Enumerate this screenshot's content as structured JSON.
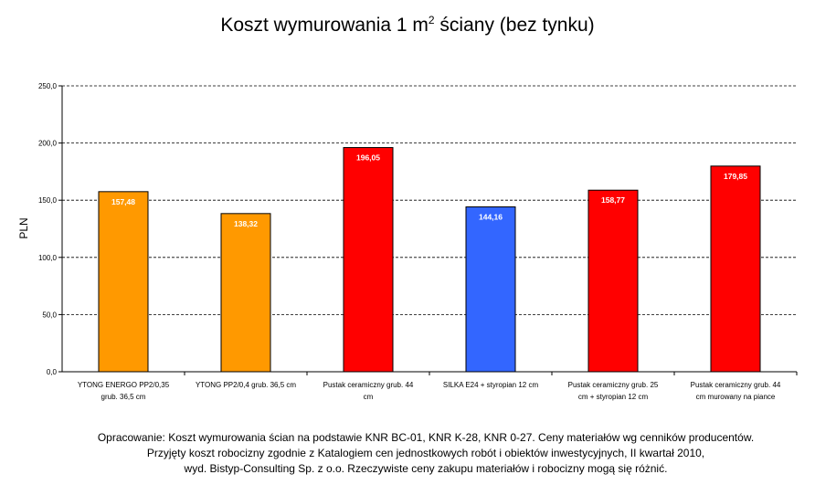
{
  "chart_data": {
    "type": "bar",
    "title_main": "Koszt wymurowania 1 m",
    "title_sup": "2",
    "title_rest": " ściany (bez tynku)",
    "ylabel": "PLN",
    "xlabel": "",
    "ylim": [
      0,
      250
    ],
    "ytick_values": [
      0,
      50,
      100,
      150,
      200,
      250
    ],
    "ytick_labels": [
      "0,0",
      "50,0",
      "100,0",
      "150,0",
      "200,0",
      "250,0"
    ],
    "grid": true,
    "categories": [
      [
        "YTONG ENERGO PP2/0,35",
        "grub. 36,5 cm"
      ],
      [
        "YTONG PP2/0,4 grub. 36,5 cm"
      ],
      [
        "Pustak ceramiczny grub. 44",
        "cm"
      ],
      [
        "SILKA E24 + styropian 12 cm"
      ],
      [
        "Pustak ceramiczny grub. 25",
        "cm + styropian 12 cm"
      ],
      [
        "Pustak ceramiczny grub. 44",
        "cm murowany na piance"
      ]
    ],
    "values": [
      157.48,
      138.32,
      196.05,
      144.16,
      158.77,
      179.85
    ],
    "value_labels": [
      "157,48",
      "138,32",
      "196,05",
      "144,16",
      "158,77",
      "179,85"
    ],
    "colors": [
      "#FF9900",
      "#FF9900",
      "#FF0000",
      "#3366FF",
      "#FF0000",
      "#FF0000"
    ]
  },
  "footer": {
    "line1": "Opracowanie: Koszt wymurowania ścian na podstawie KNR BC-01, KNR K-28, KNR 0-27. Ceny materiałów wg cenników producentów.",
    "line2": "Przyjęty koszt robocizny zgodnie z Katalogiem cen jednostkowych robót i obiektów inwestycyjnych, II kwartał 2010,",
    "line3": "wyd. Bistyp-Consulting Sp. z o.o. Rzeczywiste ceny zakupu materiałów i robocizny mogą się różnić."
  }
}
